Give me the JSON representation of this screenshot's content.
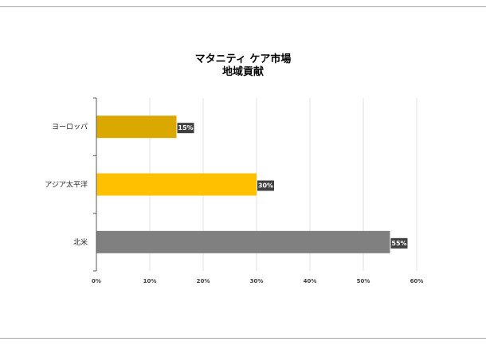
{
  "chart_data": {
    "type": "bar",
    "orientation": "horizontal",
    "title": "マタニティ ケア市場",
    "subtitle": "地域貢献",
    "categories": [
      "ヨーロッパ",
      "アジア太平洋",
      "北米"
    ],
    "values": [
      15,
      30,
      55
    ],
    "value_labels": [
      "15%",
      "30%",
      "55%"
    ],
    "colors": [
      "#dba800",
      "#ffc000",
      "#808080"
    ],
    "xlim": [
      0,
      60
    ],
    "xticks": [
      "0%",
      "10%",
      "20%",
      "30%",
      "40%",
      "50%",
      "60%"
    ],
    "grid": true,
    "legend": "none"
  }
}
